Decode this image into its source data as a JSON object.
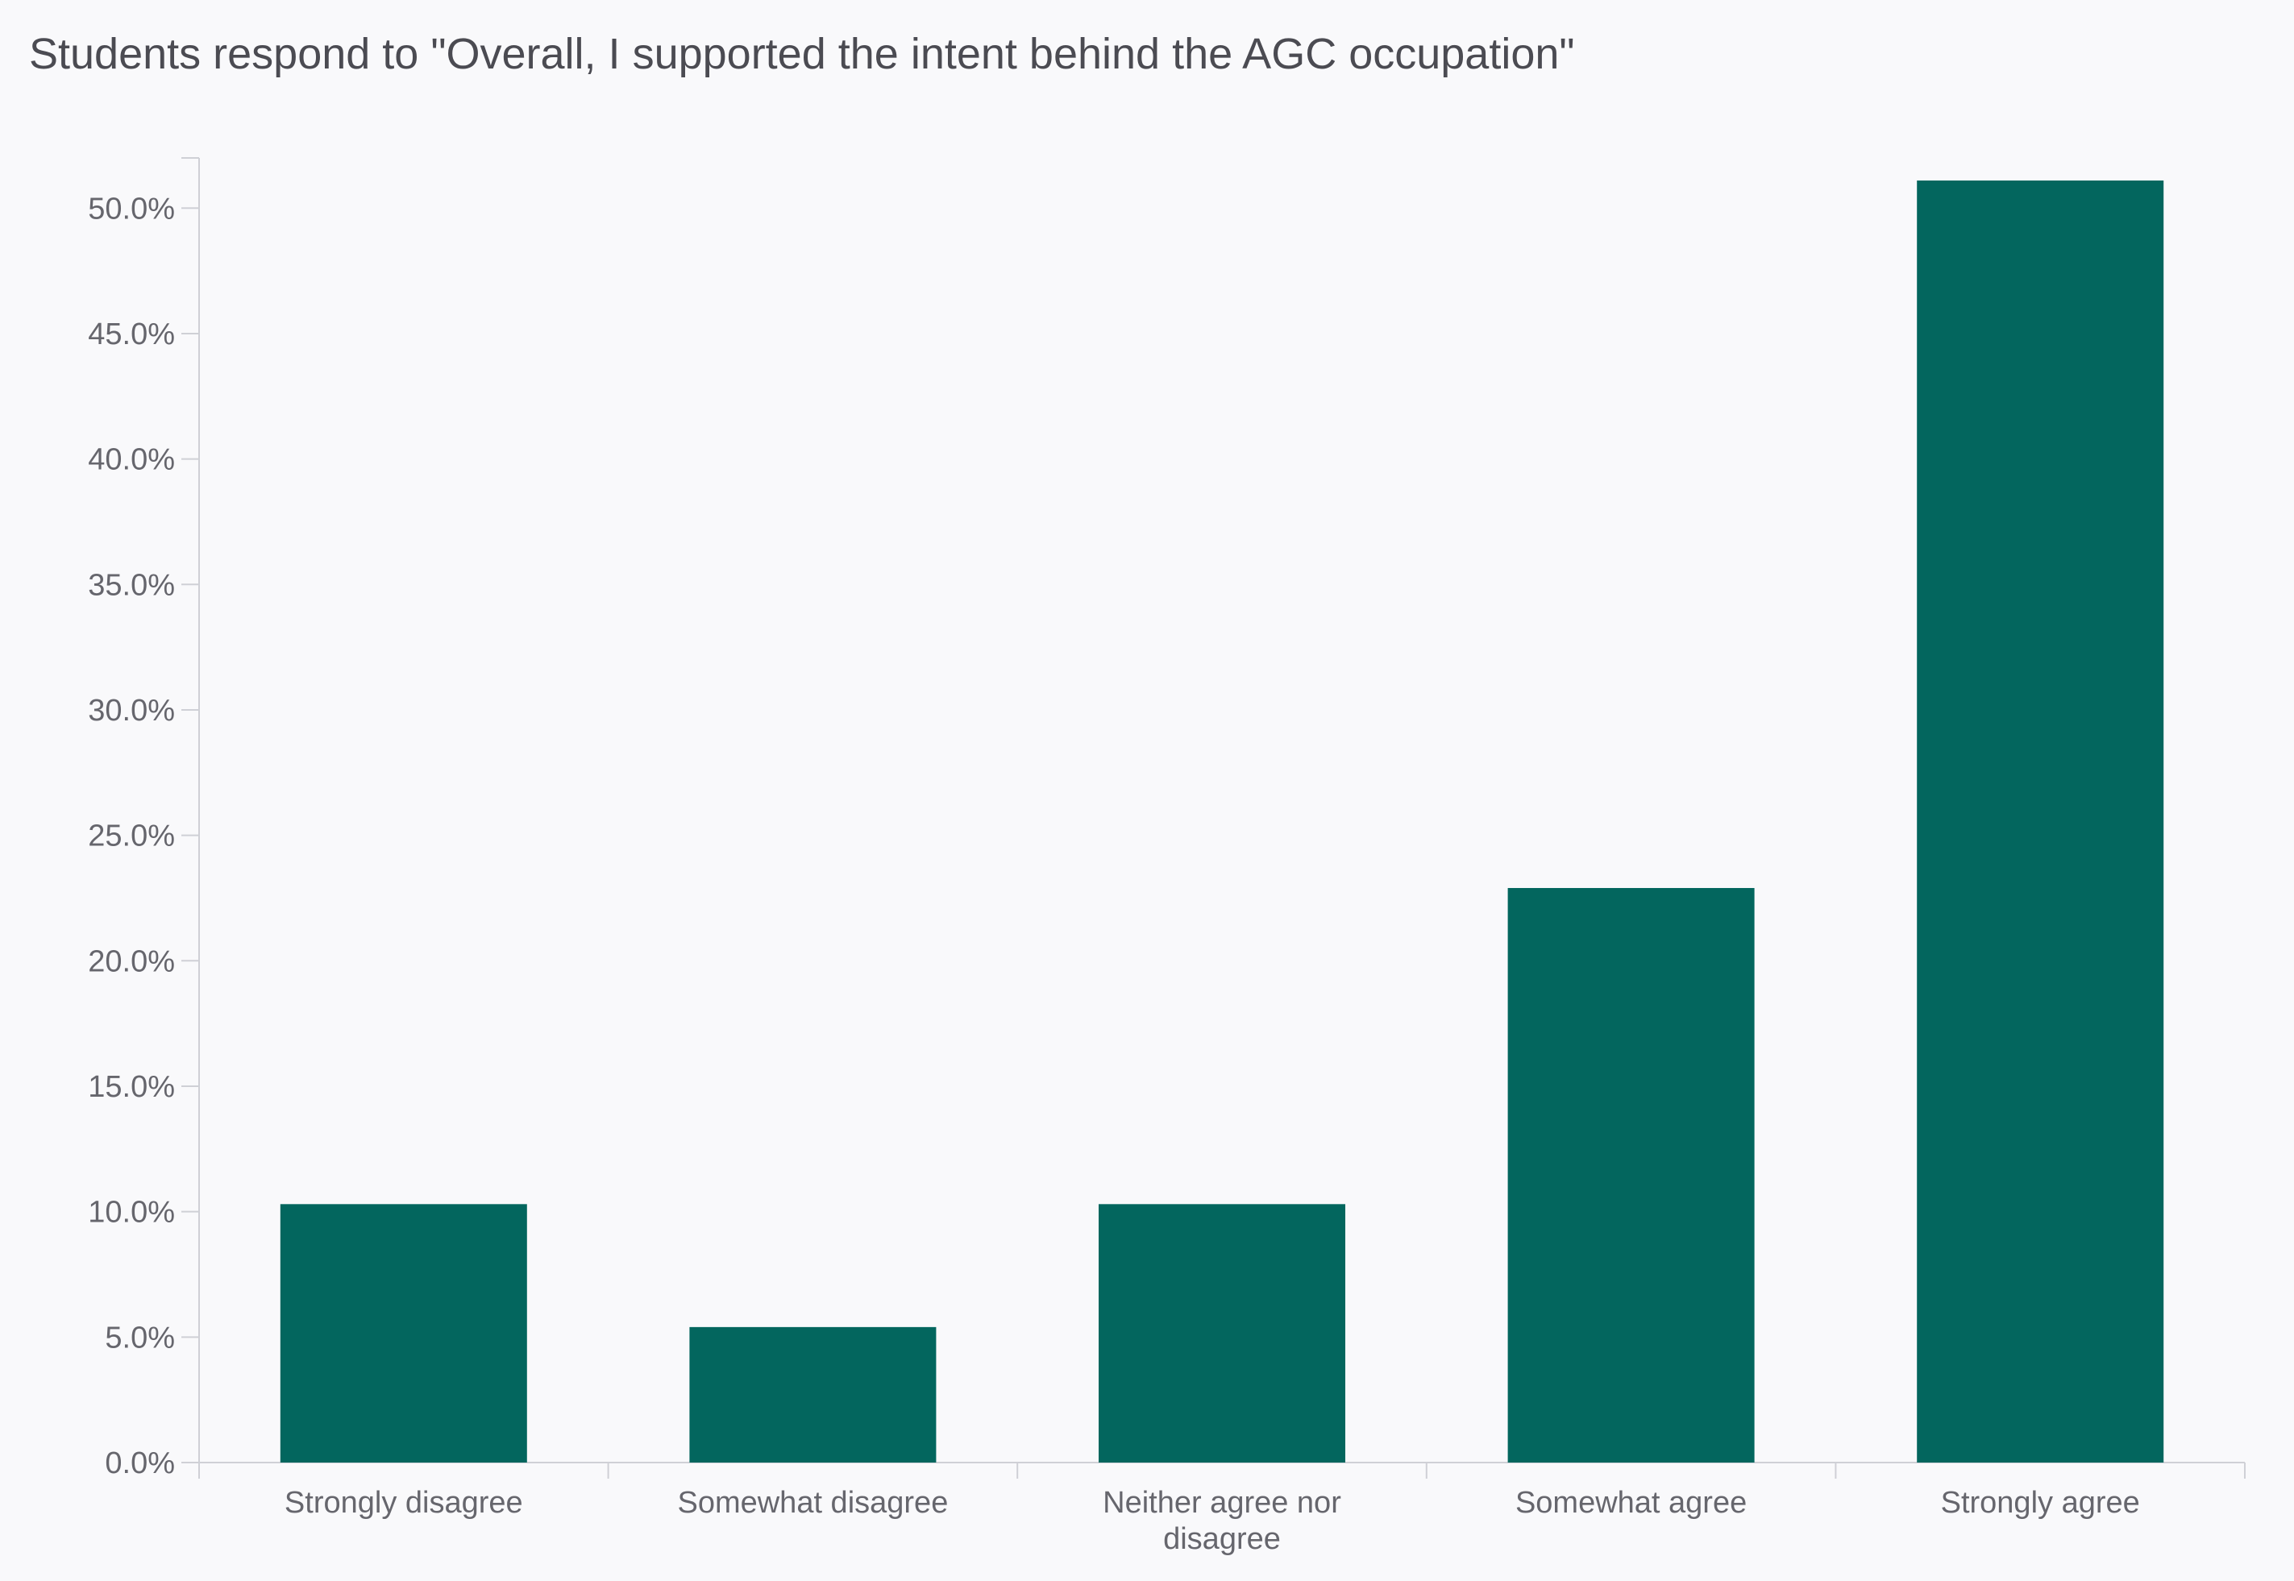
{
  "chart_data": {
    "type": "bar",
    "title": "Students respond to \"Overall, I supported the intent behind the AGC occupation\"",
    "xlabel": "",
    "ylabel": "",
    "categories": [
      [
        "Strongly disagree"
      ],
      [
        "Somewhat disagree"
      ],
      [
        "Neither agree nor",
        "disagree"
      ],
      [
        "Somewhat agree"
      ],
      [
        "Strongly agree"
      ]
    ],
    "values": [
      10.3,
      5.4,
      10.3,
      22.9,
      51.1
    ],
    "ylim": [
      0,
      52
    ],
    "yticks": [
      0,
      5,
      10,
      15,
      20,
      25,
      30,
      35,
      40,
      45,
      50
    ],
    "ytick_labels": [
      "0.0%",
      "5.0%",
      "10.0%",
      "15.0%",
      "20.0%",
      "25.0%",
      "30.0%",
      "35.0%",
      "40.0%",
      "45.0%",
      "50.0%"
    ],
    "value_format": "percent",
    "grid": false,
    "legend": "none",
    "colors": {
      "bar": "#03665e",
      "axis": "#cfd0d6",
      "text": "#66666d",
      "title": "#4b4b52",
      "background": "#f9f9fb"
    }
  }
}
